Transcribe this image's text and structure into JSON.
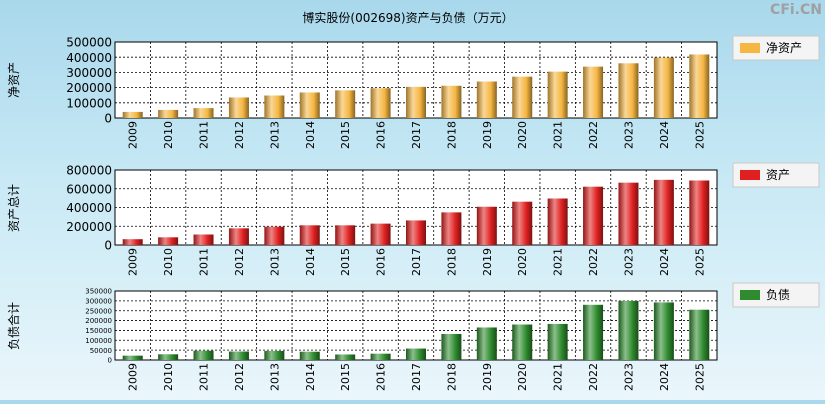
{
  "watermark": "CFi.CN",
  "chart_data": [
    {
      "type": "bar",
      "title": "博实股份(002698)资产与负债（万元）",
      "ylabel": "净资产",
      "legend": "净资产",
      "color": "#f5b642",
      "categories": [
        "2009",
        "2010",
        "2011",
        "2012",
        "2013",
        "2014",
        "2015",
        "2016",
        "2017",
        "2018",
        "2019",
        "2020",
        "2021",
        "2022",
        "2023",
        "2024",
        "2025"
      ],
      "values": [
        40000,
        53000,
        65000,
        135000,
        148000,
        168000,
        182000,
        196000,
        205000,
        212000,
        240000,
        272000,
        305000,
        338000,
        360000,
        398000,
        418000
      ],
      "ylim": [
        0,
        500000
      ],
      "yticks": [
        "500000",
        "400000",
        "300000",
        "200000",
        "100000",
        "0"
      ]
    },
    {
      "type": "bar",
      "title": "",
      "ylabel": "资产总计",
      "legend": "资产",
      "color": "#e02020",
      "categories": [
        "2009",
        "2010",
        "2011",
        "2012",
        "2013",
        "2014",
        "2015",
        "2016",
        "2017",
        "2018",
        "2019",
        "2020",
        "2021",
        "2022",
        "2023",
        "2024",
        "2025"
      ],
      "values": [
        62000,
        82000,
        112000,
        178000,
        195000,
        210000,
        210000,
        228000,
        262000,
        348000,
        408000,
        462000,
        496000,
        622000,
        665000,
        695000,
        688000
      ],
      "ylim": [
        0,
        800000
      ],
      "yticks": [
        "800000",
        "600000",
        "400000",
        "200000",
        "0"
      ]
    },
    {
      "type": "bar",
      "title": "",
      "ylabel": "负债合计",
      "legend": "负债",
      "color": "#2e8b2e",
      "categories": [
        "2009",
        "2010",
        "2011",
        "2012",
        "2013",
        "2014",
        "2015",
        "2016",
        "2017",
        "2018",
        "2019",
        "2020",
        "2021",
        "2022",
        "2023",
        "2024",
        "2025"
      ],
      "values": [
        22000,
        29000,
        47000,
        43000,
        46000,
        42000,
        28000,
        32000,
        58000,
        132000,
        165000,
        180000,
        183000,
        280000,
        300000,
        292000,
        255000
      ],
      "ylim": [
        0,
        350000
      ],
      "yticks": [
        "350000",
        "300000",
        "250000",
        "200000",
        "150000",
        "100000",
        "50000",
        "0"
      ]
    }
  ]
}
